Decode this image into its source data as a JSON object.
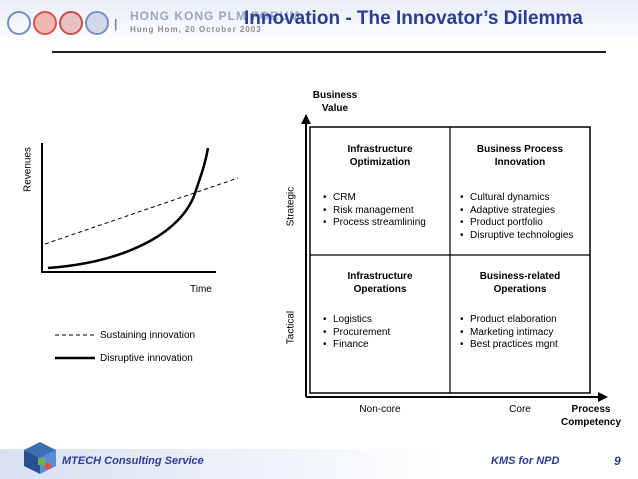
{
  "header": {
    "forum_title": "HONG KONG PLM FORUM",
    "forum_subtitle": "Hung Hom, 20 October 2003",
    "slide_title": "Innovation - The Innovator’s Dilemma"
  },
  "left_chart": {
    "y_label": "Revenues",
    "x_label": "Time",
    "legend": [
      {
        "label": "Sustaining innovation",
        "style": "dashed"
      },
      {
        "label": "Disruptive innovation",
        "style": "solid"
      }
    ]
  },
  "matrix": {
    "y_axis_title": "Business\nValue",
    "x_axis_title": "Process\nCompetency",
    "row_labels": {
      "top": "Strategic",
      "bottom": "Tactical"
    },
    "col_labels": {
      "left": "Non-core",
      "right": "Core"
    },
    "cells": {
      "top_left": {
        "title_line1": "Infrastructure",
        "title_line2": "Optimization",
        "bullets": [
          "CRM",
          "Risk management",
          "Process streamlining"
        ]
      },
      "top_right": {
        "title_line1": "Business Process",
        "title_line2": "Innovation",
        "bullets": [
          "Cultural dynamics",
          "Adaptive strategies",
          "Product portfolio",
          "Disruptive technologies"
        ]
      },
      "bottom_left": {
        "title_line1": "Infrastructure",
        "title_line2": "Operations",
        "bullets": [
          "Logistics",
          "Procurement",
          "Finance"
        ]
      },
      "bottom_right": {
        "title_line1": "Business-related",
        "title_line2": "Operations",
        "bullets": [
          "Product elaboration",
          "Marketing intimacy",
          "Best practices mgnt"
        ]
      }
    }
  },
  "footer": {
    "company": "MTECH Consulting Service",
    "topic": "KMS for NPD",
    "page": "9"
  },
  "colors": {
    "title_blue": "#2b3d94",
    "logo_red": "#d9534f",
    "logo_blue": "#3b6fb6"
  }
}
